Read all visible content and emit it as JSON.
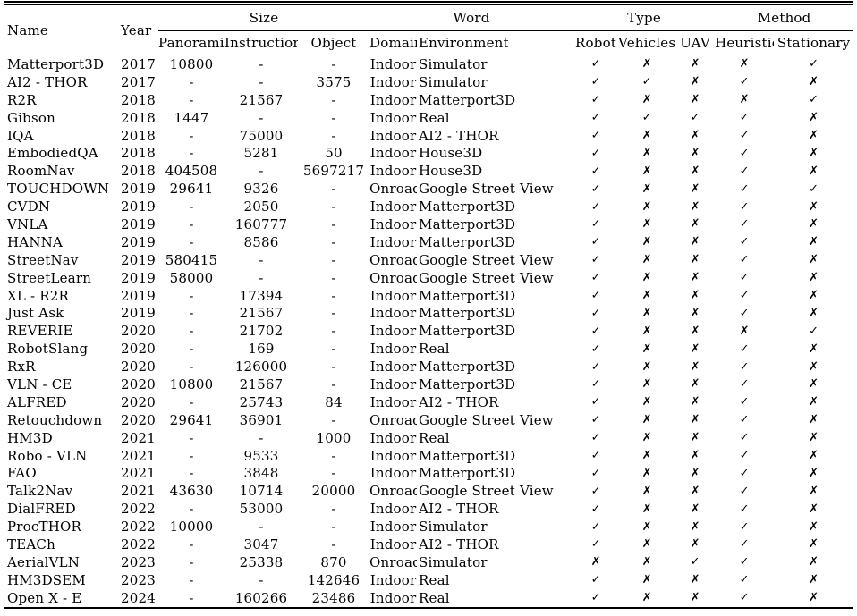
{
  "header": {
    "name": "Name",
    "year": "Year",
    "groups": [
      {
        "label": "Size",
        "children": [
          "Panoramic",
          "Instruction",
          "Object"
        ]
      },
      {
        "label": "Word",
        "children": [
          "Domain",
          "Environment"
        ]
      },
      {
        "label": "Type",
        "children": [
          "Robot",
          "Vehicles",
          "UAV"
        ]
      },
      {
        "label": "Method",
        "children": [
          "Heuristic",
          "Stationary"
        ]
      }
    ]
  },
  "marks": {
    "yes": "✓",
    "no": "✗"
  },
  "rows": [
    [
      "Matterport3D",
      "2017",
      "10800",
      "-",
      "-",
      "Indoor",
      "Simulator",
      "✓",
      "✗",
      "✗",
      "✗",
      "✓"
    ],
    [
      "AI2 - THOR",
      "2017",
      "-",
      "-",
      "3575",
      "Indoor",
      "Simulator",
      "✓",
      "✓",
      "✗",
      "✓",
      "✗"
    ],
    [
      "R2R",
      "2018",
      "-",
      "21567",
      "-",
      "Indoor",
      "Matterport3D",
      "✓",
      "✗",
      "✗",
      "✗",
      "✓"
    ],
    [
      "Gibson",
      "2018",
      "1447",
      "-",
      "-",
      "Indoor",
      "Real",
      "✓",
      "✓",
      "✓",
      "✓",
      "✗"
    ],
    [
      "IQA",
      "2018",
      "-",
      "75000",
      "-",
      "Indoor",
      "AI2 - THOR",
      "✓",
      "✗",
      "✗",
      "✓",
      "✗"
    ],
    [
      "EmbodiedQA",
      "2018",
      "-",
      "5281",
      "50",
      "Indoor",
      "House3D",
      "✓",
      "✗",
      "✗",
      "✓",
      "✗"
    ],
    [
      "RoomNav",
      "2018",
      "404508",
      "-",
      "5697217",
      "Indoor",
      "House3D",
      "✓",
      "✗",
      "✗",
      "✓",
      "✗"
    ],
    [
      "TOUCHDOWN",
      "2019",
      "29641",
      "9326",
      "-",
      "Onroad",
      "Google Street View",
      "✓",
      "✗",
      "✗",
      "✓",
      "✓"
    ],
    [
      "CVDN",
      "2019",
      "-",
      "2050",
      "-",
      "Indoor",
      "Matterport3D",
      "✓",
      "✗",
      "✗",
      "✓",
      "✗"
    ],
    [
      "VNLA",
      "2019",
      "-",
      "160777",
      "-",
      "Indoor",
      "Matterport3D",
      "✓",
      "✗",
      "✗",
      "✓",
      "✗"
    ],
    [
      "HANNA",
      "2019",
      "-",
      "8586",
      "-",
      "Indoor",
      "Matterport3D",
      "✓",
      "✗",
      "✗",
      "✓",
      "✗"
    ],
    [
      "StreetNav",
      "2019",
      "580415",
      "-",
      "-",
      "Onroad",
      "Google Street View",
      "✓",
      "✗",
      "✗",
      "✓",
      "✗"
    ],
    [
      "StreetLearn",
      "2019",
      "58000",
      "-",
      "-",
      "Onroad",
      "Google Street View",
      "✓",
      "✗",
      "✗",
      "✓",
      "✗"
    ],
    [
      "XL - R2R",
      "2019",
      "-",
      "17394",
      "-",
      "Indoor",
      "Matterport3D",
      "✓",
      "✗",
      "✗",
      "✓",
      "✗"
    ],
    [
      "Just Ask",
      "2019",
      "-",
      "21567",
      "-",
      "Indoor",
      "Matterport3D",
      "✓",
      "✗",
      "✗",
      "✓",
      "✗"
    ],
    [
      "REVERIE",
      "2020",
      "-",
      "21702",
      "-",
      "Indoor",
      "Matterport3D",
      "✓",
      "✗",
      "✗",
      "✗",
      "✓"
    ],
    [
      "RobotSlang",
      "2020",
      "-",
      "169",
      "-",
      "Indoor",
      "Real",
      "✓",
      "✗",
      "✗",
      "✓",
      "✗"
    ],
    [
      "RxR",
      "2020",
      "-",
      "126000",
      "-",
      "Indoor",
      "Matterport3D",
      "✓",
      "✗",
      "✗",
      "✓",
      "✗"
    ],
    [
      "VLN - CE",
      "2020",
      "10800",
      "21567",
      "-",
      "Indoor",
      "Matterport3D",
      "✓",
      "✗",
      "✗",
      "✓",
      "✗"
    ],
    [
      "ALFRED",
      "2020",
      "-",
      "25743",
      "84",
      "Indoor",
      "AI2 - THOR",
      "✓",
      "✗",
      "✗",
      "✓",
      "✗"
    ],
    [
      "Retouchdown",
      "2020",
      "29641",
      "36901",
      "-",
      "Onroad",
      "Google Street View",
      "✓",
      "✗",
      "✗",
      "✓",
      "✗"
    ],
    [
      "HM3D",
      "2021",
      "-",
      "-",
      "1000",
      "Indoor",
      "Real",
      "✓",
      "✗",
      "✗",
      "✓",
      "✗"
    ],
    [
      "Robo - VLN",
      "2021",
      "-",
      "9533",
      "-",
      "Indoor",
      "Matterport3D",
      "✓",
      "✗",
      "✗",
      "✓",
      "✗"
    ],
    [
      "FAO",
      "2021",
      "-",
      "3848",
      "-",
      "Indoor",
      "Matterport3D",
      "✓",
      "✗",
      "✗",
      "✓",
      "✗"
    ],
    [
      "Talk2Nav",
      "2021",
      "43630",
      "10714",
      "20000",
      "Onroad",
      "Google Street View",
      "✓",
      "✗",
      "✗",
      "✓",
      "✗"
    ],
    [
      "DialFRED",
      "2022",
      "-",
      "53000",
      "-",
      "Indoor",
      "AI2 - THOR",
      "✓",
      "✗",
      "✗",
      "✓",
      "✗"
    ],
    [
      "ProcTHOR",
      "2022",
      "10000",
      "-",
      "-",
      "Indoor",
      "Simulator",
      "✓",
      "✗",
      "✗",
      "✓",
      "✗"
    ],
    [
      "TEACh",
      "2022",
      "-",
      "3047",
      "-",
      "Indoor",
      "AI2 - THOR",
      "✓",
      "✗",
      "✗",
      "✓",
      "✗"
    ],
    [
      "AerialVLN",
      "2023",
      "-",
      "25338",
      "870",
      "Onroad",
      "Simulator",
      "✗",
      "✗",
      "✓",
      "✓",
      "✗"
    ],
    [
      "HM3DSEM",
      "2023",
      "-",
      "-",
      "142646",
      "Indoor",
      "Real",
      "✓",
      "✗",
      "✗",
      "✓",
      "✗"
    ],
    [
      "Open X - E",
      "2024",
      "-",
      "160266",
      "23486",
      "Indoor",
      "Real",
      "✓",
      "✗",
      "✗",
      "✓",
      "✗"
    ]
  ]
}
